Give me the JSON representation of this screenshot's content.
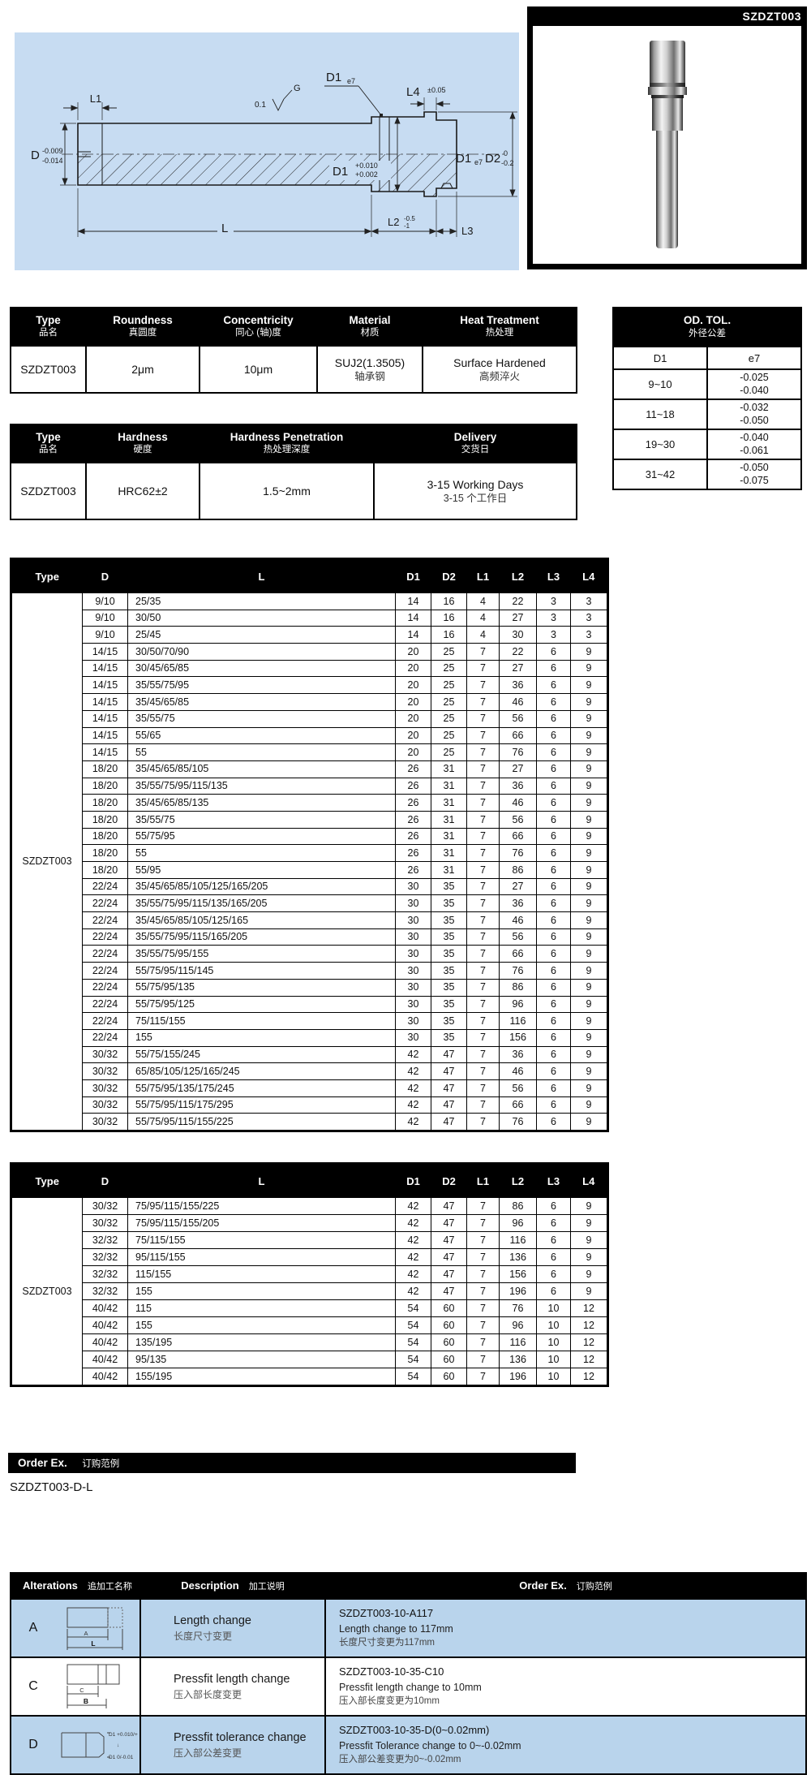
{
  "colors": {
    "drawing_bg": "#c7dcf2",
    "row_blue": "#b9d4ec",
    "header_bg": "#000000",
    "header_text": "#ffffff"
  },
  "photo": {
    "label": "SZDZT003"
  },
  "drawing": {
    "l1": "L1",
    "d": "D",
    "d_tol_u": "-0.009",
    "d_tol_l": "-0.014",
    "finish": "0.1",
    "finish_g": "G",
    "d1_top": "D1",
    "d1_top_fit": "e7",
    "l4": "L4",
    "l4_tol": "±0.05",
    "d1_mid": "D1",
    "d1_mid_u": "+0.010",
    "d1_mid_l": "+0.002",
    "d1_right": "D1",
    "d1_right_fit": "e7",
    "d2": "D2",
    "d2_u": "0",
    "d2_l": "-0.2",
    "l": "L",
    "l2": "L2",
    "l2_u": "-0.5",
    "l2_l": "-1",
    "l3": "L3"
  },
  "spec_table1": {
    "headers": [
      {
        "en": "Type",
        "zh": "品名"
      },
      {
        "en": "Roundness",
        "zh": "真圆度"
      },
      {
        "en": "Concentricity",
        "zh": "同心 (轴)度"
      },
      {
        "en": "Material",
        "zh": "材质"
      },
      {
        "en": "Heat Treatment",
        "zh": "热处理"
      }
    ],
    "row": {
      "type": "SZDZT003",
      "roundness": "2μm",
      "concentricity": "10μm",
      "material_en": "SUJ2(1.3505)",
      "material_zh": "轴承钢",
      "heat_en": "Surface Hardened",
      "heat_zh": "高频淬火"
    }
  },
  "od_tol_table": {
    "title_en": "OD. TOL.",
    "title_zh": "外径公差",
    "col1": "D1",
    "col2": "e7",
    "rows": [
      [
        "9~10",
        "-0.025\n-0.040"
      ],
      [
        "11~18",
        "-0.032\n-0.050"
      ],
      [
        "19~30",
        "-0.040\n-0.061"
      ],
      [
        "31~42",
        "-0.050\n-0.075"
      ]
    ]
  },
  "spec_table2": {
    "headers": [
      {
        "en": "Type",
        "zh": "品名"
      },
      {
        "en": "Hardness",
        "zh": "硬度"
      },
      {
        "en": "Hardness Penetration",
        "zh": "热处理深度"
      },
      {
        "en": "Delivery",
        "zh": "交货日"
      }
    ],
    "row": {
      "type": "SZDZT003",
      "hardness": "HRC62±2",
      "penetration": "1.5~2mm",
      "delivery_en": "3-15 Working Days",
      "delivery_zh": "3-15 个工作日"
    }
  },
  "size_table1": {
    "headers": [
      "Type",
      "D",
      "L",
      "D1",
      "D2",
      "L1",
      "L2",
      "L3",
      "L4"
    ],
    "type": "SZDZT003",
    "rows": [
      [
        "9/10",
        "25/35",
        "14",
        "16",
        "4",
        "22",
        "3",
        "3"
      ],
      [
        "9/10",
        "30/50",
        "14",
        "16",
        "4",
        "27",
        "3",
        "3"
      ],
      [
        "9/10",
        "25/45",
        "14",
        "16",
        "4",
        "30",
        "3",
        "3"
      ],
      [
        "14/15",
        "30/50/70/90",
        "20",
        "25",
        "7",
        "22",
        "6",
        "9"
      ],
      [
        "14/15",
        "30/45/65/85",
        "20",
        "25",
        "7",
        "27",
        "6",
        "9"
      ],
      [
        "14/15",
        "35/55/75/95",
        "20",
        "25",
        "7",
        "36",
        "6",
        "9"
      ],
      [
        "14/15",
        "35/45/65/85",
        "20",
        "25",
        "7",
        "46",
        "6",
        "9"
      ],
      [
        "14/15",
        "35/55/75",
        "20",
        "25",
        "7",
        "56",
        "6",
        "9"
      ],
      [
        "14/15",
        "55/65",
        "20",
        "25",
        "7",
        "66",
        "6",
        "9"
      ],
      [
        "14/15",
        "55",
        "20",
        "25",
        "7",
        "76",
        "6",
        "9"
      ],
      [
        "18/20",
        "35/45/65/85/105",
        "26",
        "31",
        "7",
        "27",
        "6",
        "9"
      ],
      [
        "18/20",
        "35/55/75/95/115/135",
        "26",
        "31",
        "7",
        "36",
        "6",
        "9"
      ],
      [
        "18/20",
        "35/45/65/85/135",
        "26",
        "31",
        "7",
        "46",
        "6",
        "9"
      ],
      [
        "18/20",
        "35/55/75",
        "26",
        "31",
        "7",
        "56",
        "6",
        "9"
      ],
      [
        "18/20",
        "55/75/95",
        "26",
        "31",
        "7",
        "66",
        "6",
        "9"
      ],
      [
        "18/20",
        "55",
        "26",
        "31",
        "7",
        "76",
        "6",
        "9"
      ],
      [
        "18/20",
        "55/95",
        "26",
        "31",
        "7",
        "86",
        "6",
        "9"
      ],
      [
        "22/24",
        "35/45/65/85/105/125/165/205",
        "30",
        "35",
        "7",
        "27",
        "6",
        "9"
      ],
      [
        "22/24",
        "35/55/75/95/115/135/165/205",
        "30",
        "35",
        "7",
        "36",
        "6",
        "9"
      ],
      [
        "22/24",
        "35/45/65/85/105/125/165",
        "30",
        "35",
        "7",
        "46",
        "6",
        "9"
      ],
      [
        "22/24",
        "35/55/75/95/115/165/205",
        "30",
        "35",
        "7",
        "56",
        "6",
        "9"
      ],
      [
        "22/24",
        "35/55/75/95/155",
        "30",
        "35",
        "7",
        "66",
        "6",
        "9"
      ],
      [
        "22/24",
        "55/75/95/115/145",
        "30",
        "35",
        "7",
        "76",
        "6",
        "9"
      ],
      [
        "22/24",
        "55/75/95/135",
        "30",
        "35",
        "7",
        "86",
        "6",
        "9"
      ],
      [
        "22/24",
        "55/75/95/125",
        "30",
        "35",
        "7",
        "96",
        "6",
        "9"
      ],
      [
        "22/24",
        "75/115/155",
        "30",
        "35",
        "7",
        "116",
        "6",
        "9"
      ],
      [
        "22/24",
        "155",
        "30",
        "35",
        "7",
        "156",
        "6",
        "9"
      ],
      [
        "30/32",
        "55/75/155/245",
        "42",
        "47",
        "7",
        "36",
        "6",
        "9"
      ],
      [
        "30/32",
        "65/85/105/125/165/245",
        "42",
        "47",
        "7",
        "46",
        "6",
        "9"
      ],
      [
        "30/32",
        "55/75/95/135/175/245",
        "42",
        "47",
        "7",
        "56",
        "6",
        "9"
      ],
      [
        "30/32",
        "55/75/95/115/175/295",
        "42",
        "47",
        "7",
        "66",
        "6",
        "9"
      ],
      [
        "30/32",
        "55/75/95/115/155/225",
        "42",
        "47",
        "7",
        "76",
        "6",
        "9"
      ]
    ]
  },
  "size_table2": {
    "headers": [
      "Type",
      "D",
      "L",
      "D1",
      "D2",
      "L1",
      "L2",
      "L3",
      "L4"
    ],
    "type": "SZDZT003",
    "rows": [
      [
        "30/32",
        "75/95/115/155/225",
        "42",
        "47",
        "7",
        "86",
        "6",
        "9"
      ],
      [
        "30/32",
        "75/95/115/155/205",
        "42",
        "47",
        "7",
        "96",
        "6",
        "9"
      ],
      [
        "32/32",
        "75/115/155",
        "42",
        "47",
        "7",
        "116",
        "6",
        "9"
      ],
      [
        "32/32",
        "95/115/155",
        "42",
        "47",
        "7",
        "136",
        "6",
        "9"
      ],
      [
        "32/32",
        "115/155",
        "42",
        "47",
        "7",
        "156",
        "6",
        "9"
      ],
      [
        "32/32",
        "155",
        "42",
        "47",
        "7",
        "196",
        "6",
        "9"
      ],
      [
        "40/42",
        "115",
        "54",
        "60",
        "7",
        "76",
        "10",
        "12"
      ],
      [
        "40/42",
        "155",
        "54",
        "60",
        "7",
        "96",
        "10",
        "12"
      ],
      [
        "40/42",
        "135/195",
        "54",
        "60",
        "7",
        "116",
        "10",
        "12"
      ],
      [
        "40/42",
        "95/135",
        "54",
        "60",
        "7",
        "136",
        "10",
        "12"
      ],
      [
        "40/42",
        "155/195",
        "54",
        "60",
        "7",
        "196",
        "10",
        "12"
      ]
    ]
  },
  "order_example": {
    "bar_en": "Order Ex.",
    "bar_zh": "订购范例",
    "code": "SZDZT003-D-L"
  },
  "alterations": {
    "header": {
      "col1_en": "Alterations",
      "col1_zh": "追加工名称",
      "col2_en": "Description",
      "col2_zh": "加工说明",
      "col3_en": "Order Ex.",
      "col3_zh": "订购范例"
    },
    "rows": [
      {
        "letter": "A",
        "desc_en": "Length change",
        "desc_zh": "长度尺寸变更",
        "order_code": "SZDZT003-10-A117",
        "order_en": "Length change to 117mm",
        "order_zh": "长度尺寸变更为117mm",
        "dia": {
          "a": "A",
          "l": "L"
        }
      },
      {
        "letter": "C",
        "desc_en": "Pressfit length change",
        "desc_zh": "压入部长度变更",
        "order_code": "SZDZT003-10-35-C10",
        "order_en": "Pressfit length change to 10mm",
        "order_zh": "压入部长度变更为10mm",
        "dia": {
          "c": "C",
          "b": "B"
        }
      },
      {
        "letter": "D",
        "desc_en": "Pressfit tolerance change",
        "desc_zh": "压入部公差变更",
        "order_code": "SZDZT003-10-35-D(0~0.02mm)",
        "order_en": "Pressfit Tolerance change to 0~-0.02mm",
        "order_zh": "压入部公差变更为0~-0.02mm",
        "dia": {
          "top": "D1 +0.010/+0.002",
          "arrow": "↓",
          "bottom": "D1 0/-0.01"
        }
      }
    ]
  }
}
